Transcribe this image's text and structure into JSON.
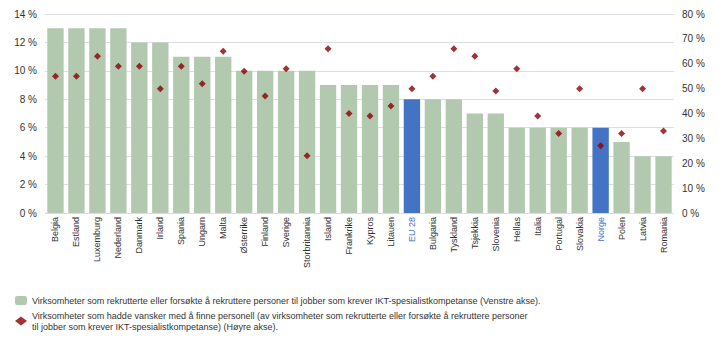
{
  "chart_data": {
    "type": "bar",
    "categories": [
      "Belgia",
      "Estland",
      "Luxemburg",
      "Nederland",
      "Danmark",
      "Irland",
      "Spania",
      "Ungarn",
      "Malta",
      "Østerrike",
      "Finland",
      "Sverige",
      "Storbritannia",
      "Island",
      "Frankrike",
      "Kypros",
      "Litauen",
      "EU 28",
      "Bulgaria",
      "Tyskland",
      "Tsjekkia",
      "Slovenia",
      "Hellas",
      "Italia",
      "Portugal",
      "Slovakia",
      "Norge",
      "Polen",
      "Latvia",
      "Romania"
    ],
    "series": [
      {
        "name": "Virksomheter som rekrutterte eller forsøkte å rekruttere personer til jobber som krever IKT-spesialistkompetanse (Venstre akse).",
        "type": "bar",
        "color": "#b2c9b0",
        "colors": [
          "#b2c9b0",
          "#b2c9b0",
          "#b2c9b0",
          "#b2c9b0",
          "#b2c9b0",
          "#b2c9b0",
          "#b2c9b0",
          "#b2c9b0",
          "#b2c9b0",
          "#b2c9b0",
          "#b2c9b0",
          "#b2c9b0",
          "#b2c9b0",
          "#b2c9b0",
          "#b2c9b0",
          "#b2c9b0",
          "#b2c9b0",
          "#4472C4",
          "#b2c9b0",
          "#b2c9b0",
          "#b2c9b0",
          "#b2c9b0",
          "#b2c9b0",
          "#b2c9b0",
          "#b2c9b0",
          "#b2c9b0",
          "#4472C4",
          "#b2c9b0",
          "#b2c9b0",
          "#b2c9b0"
        ],
        "values": [
          13.0,
          13.0,
          13.0,
          13.0,
          12.0,
          12.0,
          11.0,
          11.0,
          11.0,
          10.0,
          10.0,
          10.0,
          10.0,
          9.0,
          9.0,
          9.0,
          9.0,
          8.0,
          8.0,
          8.0,
          7.0,
          7.0,
          6.0,
          6.0,
          6.0,
          6.0,
          6.0,
          5.0,
          4.0,
          4.0
        ]
      },
      {
        "name": "Virksomheter som hadde vansker med å finne personell (av virksomheter som rekrutterte eller forsøkte å rekruttere personer\ntil jobber som krever IKT-spesialistkompetanse) (Høyre akse).",
        "type": "scatter",
        "axis": "y2",
        "marker": "diamond",
        "color": "#8B0000",
        "values": [
          55,
          55,
          63,
          59,
          59,
          50,
          59,
          52,
          65,
          57,
          47,
          58,
          23,
          66,
          40,
          39,
          43,
          50,
          55,
          66,
          63,
          49,
          58,
          39,
          32,
          50,
          27,
          32,
          50,
          33
        ]
      }
    ],
    "ylim": [
      0,
      14
    ],
    "yticks": [
      {
        "value": 0,
        "label": "0 %"
      },
      {
        "value": 2,
        "label": "2 %"
      },
      {
        "value": 4,
        "label": "4 %"
      },
      {
        "value": 6,
        "label": "6 %"
      },
      {
        "value": 8,
        "label": "8 %"
      },
      {
        "value": 10,
        "label": "10 %"
      },
      {
        "value": 12,
        "label": "12 %"
      },
      {
        "value": 14,
        "label": "14 %"
      }
    ],
    "y2lim": [
      0,
      80
    ],
    "y2ticks": [
      {
        "value": 0,
        "label": "0 %"
      },
      {
        "value": 10,
        "label": "10 %"
      },
      {
        "value": 20,
        "label": "20 %"
      },
      {
        "value": 30,
        "label": "30 %"
      },
      {
        "value": 40,
        "label": "40 %"
      },
      {
        "value": 50,
        "label": "50 %"
      },
      {
        "value": 60,
        "label": "60 %"
      },
      {
        "value": 70,
        "label": "70 %"
      },
      {
        "value": 80,
        "label": "80 %"
      }
    ],
    "grid": true,
    "legend": "lower left"
  }
}
